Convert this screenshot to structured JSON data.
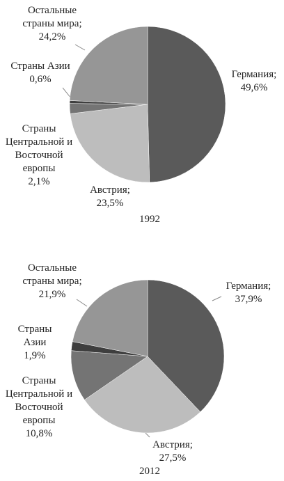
{
  "chart_data": [
    {
      "type": "pie",
      "title": "1992",
      "categories": [
        "Германия;",
        "Австрия;",
        "Страны Центральной и Восточной европы",
        "Страны Азии",
        "Остальные страны мира;"
      ],
      "values": [
        49.6,
        23.5,
        2.1,
        0.6,
        24.2
      ],
      "value_labels": [
        "49,6%",
        "23,5%",
        "2,1%",
        "0,6%",
        "24,2%"
      ],
      "colors": [
        "#5a5a5a",
        "#bdbdbd",
        "#747474",
        "#3e3e3e",
        "#969696"
      ]
    },
    {
      "type": "pie",
      "title": "2012",
      "categories": [
        "Германия;",
        "Австрия;",
        "Страны Центральной и Восточной европы",
        "Страны Азии",
        "Остальные страны мира;"
      ],
      "values": [
        37.9,
        27.5,
        10.8,
        1.9,
        21.9
      ],
      "value_labels": [
        "37,9%",
        "27,5%",
        "10,8%",
        "1,9%",
        "21,9%"
      ],
      "colors": [
        "#5a5a5a",
        "#bdbdbd",
        "#747474",
        "#3e3e3e",
        "#969696"
      ]
    }
  ]
}
